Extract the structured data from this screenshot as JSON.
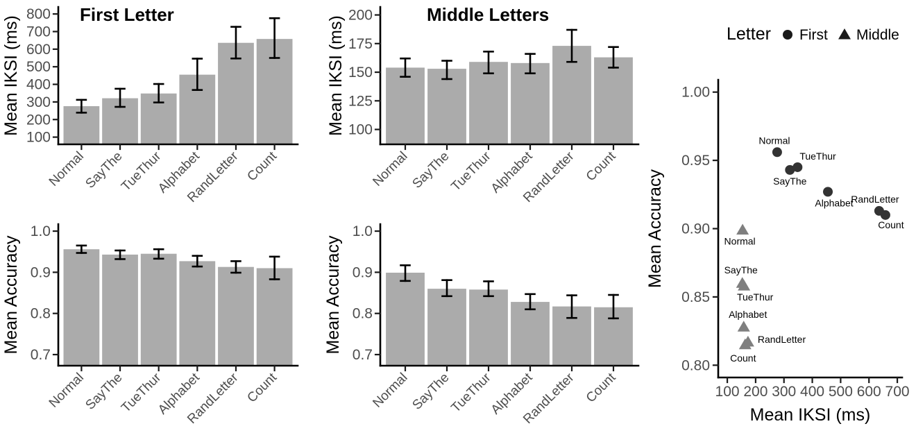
{
  "colors": {
    "bar_fill": "#ABABAB",
    "error_bar": "#000000",
    "axis_line": "#000000",
    "tick_mark": "#1A1A1A",
    "tick_label": "#4D4D4D",
    "title_text": "#000000",
    "first_marker": "#333333",
    "middle_marker": "#7F7F7F",
    "legend_marker": "#1A1A1A",
    "point_label": "#000000"
  },
  "categories": [
    "Normal",
    "SayThe",
    "TueThur",
    "Alphabet",
    "RandLetter",
    "Count"
  ],
  "chart_data": [
    {
      "id": "iksi-first",
      "type": "bar",
      "title": "First Letter",
      "ylabel": "Mean IKSI (ms)",
      "categories": [
        "Normal",
        "SayThe",
        "TueThur",
        "Alphabet",
        "RandLetter",
        "Count"
      ],
      "values": [
        276,
        321,
        348,
        455,
        636,
        658
      ],
      "error_low": [
        239,
        272,
        297,
        368,
        547,
        550
      ],
      "error_high": [
        312,
        375,
        402,
        546,
        727,
        776
      ],
      "yticks": [
        100,
        200,
        300,
        400,
        500,
        600,
        700,
        800
      ],
      "ytick_labels": [
        "100",
        "200",
        "300",
        "400",
        "500",
        "600",
        "700",
        "800"
      ],
      "ylim": [
        59,
        840
      ],
      "grid": false
    },
    {
      "id": "iksi-middle",
      "type": "bar",
      "title": "Middle Letters",
      "ylabel": "Mean IKSI (ms)",
      "categories": [
        "Normal",
        "SayThe",
        "TueThur",
        "Alphabet",
        "RandLetter",
        "Count"
      ],
      "values": [
        154,
        153,
        159,
        158,
        173,
        163
      ],
      "error_low": [
        146,
        144,
        149,
        149,
        159,
        154
      ],
      "error_high": [
        162,
        160,
        168,
        166,
        187,
        172
      ],
      "yticks": [
        100,
        125,
        150,
        175,
        200
      ],
      "ytick_labels": [
        "100",
        "125",
        "150",
        "175",
        "200"
      ],
      "ylim": [
        87,
        207
      ],
      "grid": false
    },
    {
      "id": "acc-first",
      "type": "bar",
      "title": "",
      "ylabel": "Mean Accuracy",
      "categories": [
        "Normal",
        "SayThe",
        "TueThur",
        "Alphabet",
        "RandLetter",
        "Count"
      ],
      "values": [
        0.956,
        0.943,
        0.945,
        0.927,
        0.913,
        0.91
      ],
      "error_low": [
        0.947,
        0.932,
        0.933,
        0.914,
        0.899,
        0.883
      ],
      "error_high": [
        0.965,
        0.953,
        0.956,
        0.94,
        0.927,
        0.938
      ],
      "yticks": [
        0.7,
        0.8,
        0.9,
        1.0
      ],
      "ytick_labels": [
        "0.7",
        "0.8",
        "0.9",
        "1.0"
      ],
      "ylim": [
        0.673,
        1.017
      ],
      "grid": false
    },
    {
      "id": "acc-middle",
      "type": "bar",
      "title": "",
      "ylabel": "Mean Accuracy",
      "categories": [
        "Normal",
        "SayThe",
        "TueThur",
        "Alphabet",
        "RandLetter",
        "Count"
      ],
      "values": [
        0.899,
        0.86,
        0.858,
        0.828,
        0.817,
        0.815
      ],
      "error_low": [
        0.879,
        0.842,
        0.842,
        0.81,
        0.789,
        0.788
      ],
      "error_high": [
        0.917,
        0.881,
        0.878,
        0.847,
        0.844,
        0.845
      ],
      "yticks": [
        0.7,
        0.8,
        0.9,
        1.0
      ],
      "ytick_labels": [
        "0.7",
        "0.8",
        "0.9",
        "1.0"
      ],
      "ylim": [
        0.673,
        1.017
      ],
      "grid": false
    },
    {
      "id": "scatter",
      "type": "scatter",
      "xlabel": "Mean IKSI (ms)",
      "ylabel": "Mean Accuracy",
      "xticks": [
        100,
        200,
        300,
        400,
        500,
        600,
        700
      ],
      "xtick_labels": [
        "100",
        "200",
        "300",
        "400",
        "500",
        "600",
        "700"
      ],
      "yticks": [
        0.8,
        0.85,
        0.9,
        0.95,
        1.0
      ],
      "ytick_labels": [
        "0.80",
        "0.85",
        "0.90",
        "0.95",
        "1.00"
      ],
      "xlim": [
        68,
        717
      ],
      "ylim": [
        0.791,
        1.009
      ],
      "grid": false,
      "legend": {
        "title": "Letter",
        "position": "top",
        "entries": [
          {
            "label": "First",
            "marker": "circle"
          },
          {
            "label": "Middle",
            "marker": "triangle"
          }
        ]
      },
      "series": [
        {
          "name": "First",
          "marker": "circle",
          "color": "#333333",
          "points": [
            {
              "label": "Normal",
              "x": 276,
              "y": 0.956,
              "anchor": "middle",
              "dx": -4,
              "dy": -12
            },
            {
              "label": "SayThe",
              "x": 321,
              "y": 0.943,
              "anchor": "middle",
              "dx": 0,
              "dy": 21
            },
            {
              "label": "TueThur",
              "x": 348,
              "y": 0.945,
              "anchor": "start",
              "dx": 3,
              "dy": -11
            },
            {
              "label": "Alphabet",
              "x": 455,
              "y": 0.927,
              "anchor": "middle",
              "dx": 9,
              "dy": 21
            },
            {
              "label": "RandLetter",
              "x": 636,
              "y": 0.913,
              "anchor": "middle",
              "dx": -6,
              "dy": -12
            },
            {
              "label": "Count",
              "x": 658,
              "y": 0.91,
              "anchor": "middle",
              "dx": 8,
              "dy": 19
            }
          ]
        },
        {
          "name": "Middle",
          "marker": "triangle",
          "color": "#7F7F7F",
          "points": [
            {
              "label": "Normal",
              "x": 154,
              "y": 0.899,
              "anchor": "middle",
              "dx": -4,
              "dy": 21
            },
            {
              "label": "SayThe",
              "x": 153,
              "y": 0.86,
              "anchor": "middle",
              "dx": -2,
              "dy": -14
            },
            {
              "label": "TueThur",
              "x": 159,
              "y": 0.858,
              "anchor": "middle",
              "dx": 16,
              "dy": 21
            },
            {
              "label": "Alphabet",
              "x": 158,
              "y": 0.828,
              "anchor": "middle",
              "dx": 6,
              "dy": -13
            },
            {
              "label": "RandLetter",
              "x": 173,
              "y": 0.817,
              "anchor": "start",
              "dx": 14,
              "dy": 1
            },
            {
              "label": "Count",
              "x": 163,
              "y": 0.815,
              "anchor": "middle",
              "dx": -3,
              "dy": 24
            }
          ]
        }
      ]
    }
  ]
}
